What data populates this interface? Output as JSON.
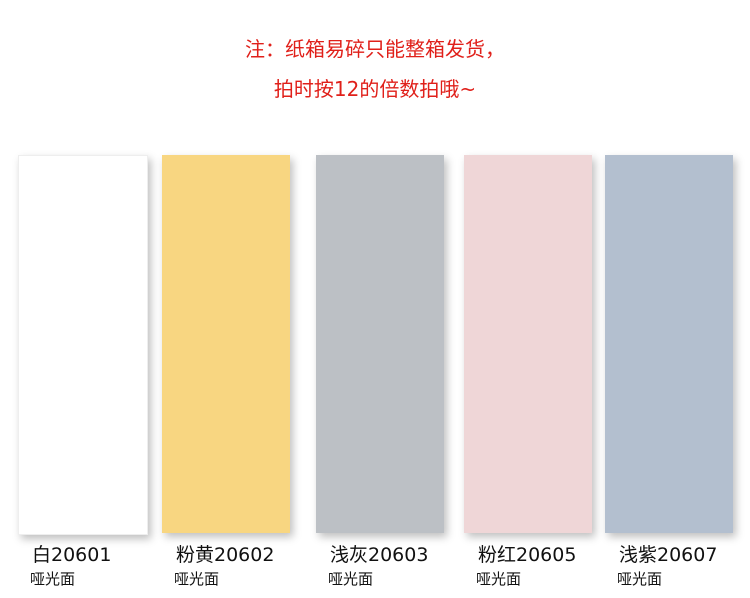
{
  "notice": {
    "line1": "注：纸箱易碎只能整箱发货，",
    "line2": "拍时按12的倍数拍哦~"
  },
  "tiles": [
    {
      "name": "白20601",
      "finish": "哑光面",
      "color": "#ffffff"
    },
    {
      "name": "粉黄20602",
      "finish": "哑光面",
      "color": "#f8d681"
    },
    {
      "name": "浅灰20603",
      "finish": "哑光面",
      "color": "#bcc0c5"
    },
    {
      "name": "粉红20605",
      "finish": "哑光面",
      "color": "#efd6d7"
    },
    {
      "name": "浅紫20607",
      "finish": "哑光面",
      "color": "#b3bfcf"
    }
  ]
}
